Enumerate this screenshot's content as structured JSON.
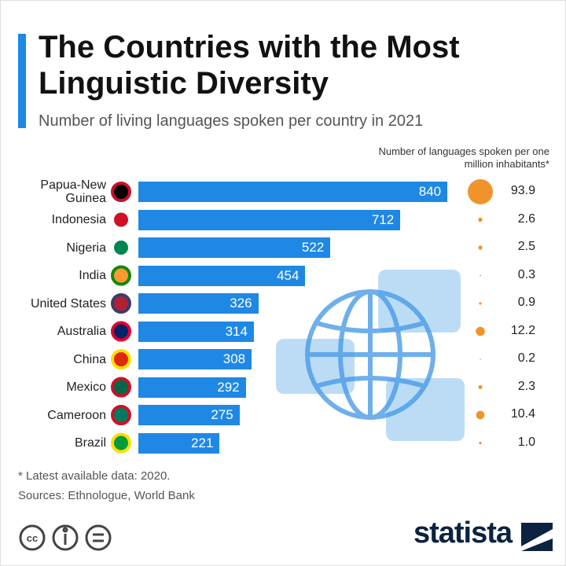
{
  "chart_data": {
    "type": "bar",
    "title": "The Countries with the Most Linguistic Diversity",
    "subtitle": "Number of living languages spoken per country in 2021",
    "categories": [
      "Papua-New Guinea",
      "Indonesia",
      "Nigeria",
      "India",
      "United States",
      "Australia",
      "China",
      "Mexico",
      "Cameroon",
      "Brazil"
    ],
    "values": [
      840,
      712,
      522,
      454,
      326,
      314,
      308,
      292,
      275,
      221
    ],
    "color": "#1f88e5",
    "per_million": {
      "name": "Number of languages spoken per one million inhabitants*",
      "values": [
        93.9,
        2.6,
        2.5,
        0.3,
        0.9,
        12.2,
        0.2,
        2.3,
        10.4,
        1.0
      ],
      "value_labels": [
        "93.9",
        "2.6",
        "2.5",
        "0.3",
        "0.9",
        "12.2",
        "0.2",
        "2.3",
        "10.4",
        "1.0"
      ],
      "color": "#f0932b"
    },
    "notes": [
      "* Latest available data: 2020.",
      "Sources: Ethnologue, World Bank"
    ],
    "brand": "statista"
  }
}
